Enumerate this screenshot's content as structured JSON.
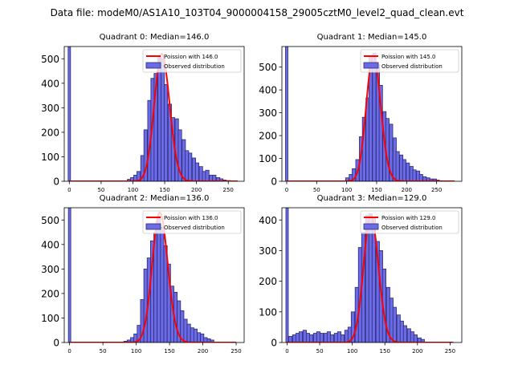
{
  "suptitle": "Data file: modeM0/AS1A10_103T04_9000004158_29005cztM0_level2_quad_clean.evt",
  "colors": {
    "bar_fill": "#6b6be8",
    "bar_edge": "#2a2a70",
    "curve": "#ff0000",
    "axis": "#000000"
  },
  "chart_data": [
    {
      "type": "bar",
      "title": "Quadrant 0: Median=146.0",
      "legend": [
        "Poission with 146.0",
        "Observed distribution"
      ],
      "legend_position": "upper-right",
      "xlim": [
        -8,
        275
      ],
      "ylim": [
        0,
        550
      ],
      "xticks": [
        0,
        50,
        100,
        150,
        200,
        250
      ],
      "yticks": [
        0,
        100,
        200,
        300,
        400,
        500
      ],
      "xlabel": "",
      "ylabel": "",
      "bin_width": 5.4,
      "zero_bin": {
        "x": 0,
        "value": 550
      },
      "bars": [
        {
          "x": 94,
          "v": 8
        },
        {
          "x": 99,
          "v": 15
        },
        {
          "x": 104,
          "v": 25
        },
        {
          "x": 109,
          "v": 40
        },
        {
          "x": 115,
          "v": 105
        },
        {
          "x": 120,
          "v": 210
        },
        {
          "x": 126,
          "v": 330
        },
        {
          "x": 131,
          "v": 420
        },
        {
          "x": 136,
          "v": 440
        },
        {
          "x": 142,
          "v": 510
        },
        {
          "x": 147,
          "v": 500
        },
        {
          "x": 152,
          "v": 395
        },
        {
          "x": 158,
          "v": 315
        },
        {
          "x": 163,
          "v": 260
        },
        {
          "x": 169,
          "v": 255
        },
        {
          "x": 174,
          "v": 210
        },
        {
          "x": 180,
          "v": 170
        },
        {
          "x": 185,
          "v": 125
        },
        {
          "x": 190,
          "v": 115
        },
        {
          "x": 196,
          "v": 95
        },
        {
          "x": 201,
          "v": 75
        },
        {
          "x": 207,
          "v": 60
        },
        {
          "x": 212,
          "v": 40
        },
        {
          "x": 217,
          "v": 45
        },
        {
          "x": 223,
          "v": 25
        },
        {
          "x": 228,
          "v": 25
        },
        {
          "x": 234,
          "v": 15
        },
        {
          "x": 239,
          "v": 10
        },
        {
          "x": 244,
          "v": 5
        },
        {
          "x": 250,
          "v": 3
        }
      ],
      "poisson": {
        "mean": 146.0,
        "peak": 520,
        "xmin": 0,
        "xmax": 265
      }
    },
    {
      "type": "bar",
      "title": "Quadrant 1: Median=145.0",
      "legend": [
        "Poission with 145.0",
        "Observed distribution"
      ],
      "legend_position": "upper-right",
      "xlim": [
        -8,
        292
      ],
      "ylim": [
        0,
        590
      ],
      "xticks": [
        0,
        50,
        100,
        150,
        200,
        250
      ],
      "yticks": [
        0,
        100,
        200,
        300,
        400,
        500
      ],
      "xlabel": "",
      "ylabel": "",
      "bin_width": 5.6,
      "zero_bin": {
        "x": 0,
        "value": 590
      },
      "bars": [
        {
          "x": 101,
          "v": 15
        },
        {
          "x": 107,
          "v": 30
        },
        {
          "x": 112,
          "v": 55
        },
        {
          "x": 118,
          "v": 95
        },
        {
          "x": 124,
          "v": 195
        },
        {
          "x": 129,
          "v": 280
        },
        {
          "x": 135,
          "v": 365
        },
        {
          "x": 140,
          "v": 550
        },
        {
          "x": 146,
          "v": 560
        },
        {
          "x": 152,
          "v": 510
        },
        {
          "x": 157,
          "v": 420
        },
        {
          "x": 163,
          "v": 305
        },
        {
          "x": 168,
          "v": 275
        },
        {
          "x": 174,
          "v": 250
        },
        {
          "x": 180,
          "v": 190
        },
        {
          "x": 185,
          "v": 130
        },
        {
          "x": 191,
          "v": 115
        },
        {
          "x": 196,
          "v": 95
        },
        {
          "x": 202,
          "v": 80
        },
        {
          "x": 208,
          "v": 65
        },
        {
          "x": 213,
          "v": 50
        },
        {
          "x": 219,
          "v": 45
        },
        {
          "x": 224,
          "v": 30
        },
        {
          "x": 230,
          "v": 20
        },
        {
          "x": 236,
          "v": 15
        },
        {
          "x": 241,
          "v": 10
        },
        {
          "x": 247,
          "v": 10
        },
        {
          "x": 252,
          "v": 5
        }
      ],
      "poisson": {
        "mean": 145.0,
        "peak": 550,
        "xmin": 0,
        "xmax": 280
      }
    },
    {
      "type": "bar",
      "title": "Quadrant 2: Median=136.0",
      "legend": [
        "Poission with 136.0",
        "Observed distribution"
      ],
      "legend_position": "upper-right",
      "xlim": [
        -8,
        262
      ],
      "ylim": [
        0,
        550
      ],
      "xticks": [
        0,
        50,
        100,
        150,
        200,
        250
      ],
      "yticks": [
        0,
        100,
        200,
        300,
        400,
        500
      ],
      "xlabel": "",
      "ylabel": "",
      "bin_width": 5.1,
      "zero_bin": {
        "x": 0,
        "value": 550
      },
      "bars": [
        {
          "x": 84,
          "v": 5
        },
        {
          "x": 89,
          "v": 10
        },
        {
          "x": 94,
          "v": 20
        },
        {
          "x": 99,
          "v": 35
        },
        {
          "x": 104,
          "v": 70
        },
        {
          "x": 109,
          "v": 175
        },
        {
          "x": 114,
          "v": 300
        },
        {
          "x": 119,
          "v": 345
        },
        {
          "x": 124,
          "v": 415
        },
        {
          "x": 129,
          "v": 450
        },
        {
          "x": 134,
          "v": 515
        },
        {
          "x": 139,
          "v": 470
        },
        {
          "x": 144,
          "v": 395
        },
        {
          "x": 149,
          "v": 320
        },
        {
          "x": 154,
          "v": 230
        },
        {
          "x": 159,
          "v": 205
        },
        {
          "x": 164,
          "v": 170
        },
        {
          "x": 169,
          "v": 130
        },
        {
          "x": 174,
          "v": 95
        },
        {
          "x": 179,
          "v": 75
        },
        {
          "x": 184,
          "v": 60
        },
        {
          "x": 189,
          "v": 55
        },
        {
          "x": 194,
          "v": 40
        },
        {
          "x": 199,
          "v": 35
        },
        {
          "x": 204,
          "v": 20
        },
        {
          "x": 209,
          "v": 15
        },
        {
          "x": 214,
          "v": 10
        }
      ],
      "poisson": {
        "mean": 136.0,
        "peak": 530,
        "xmin": 0,
        "xmax": 250
      }
    },
    {
      "type": "bar",
      "title": "Quadrant 3: Median=129.0",
      "legend": [
        "Poission with 129.0",
        "Observed distribution"
      ],
      "legend_position": "upper-right",
      "xlim": [
        -8,
        268
      ],
      "ylim": [
        0,
        440
      ],
      "xticks": [
        0,
        50,
        100,
        150,
        200,
        250
      ],
      "yticks": [
        0,
        100,
        200,
        300,
        400
      ],
      "xlabel": "",
      "ylabel": "",
      "bin_width": 5.3,
      "zero_bin": {
        "x": 0,
        "value": 440
      },
      "bars": [
        {
          "x": 5,
          "v": 20
        },
        {
          "x": 11,
          "v": 25
        },
        {
          "x": 16,
          "v": 30
        },
        {
          "x": 21,
          "v": 35
        },
        {
          "x": 27,
          "v": 40
        },
        {
          "x": 32,
          "v": 30
        },
        {
          "x": 37,
          "v": 25
        },
        {
          "x": 43,
          "v": 30
        },
        {
          "x": 48,
          "v": 35
        },
        {
          "x": 53,
          "v": 30
        },
        {
          "x": 59,
          "v": 30
        },
        {
          "x": 64,
          "v": 35
        },
        {
          "x": 69,
          "v": 25
        },
        {
          "x": 75,
          "v": 30
        },
        {
          "x": 80,
          "v": 35
        },
        {
          "x": 85,
          "v": 25
        },
        {
          "x": 91,
          "v": 40
        },
        {
          "x": 96,
          "v": 50
        },
        {
          "x": 101,
          "v": 100
        },
        {
          "x": 107,
          "v": 180
        },
        {
          "x": 112,
          "v": 310
        },
        {
          "x": 117,
          "v": 360
        },
        {
          "x": 123,
          "v": 415
        },
        {
          "x": 128,
          "v": 420
        },
        {
          "x": 133,
          "v": 405
        },
        {
          "x": 139,
          "v": 330
        },
        {
          "x": 144,
          "v": 300
        },
        {
          "x": 149,
          "v": 240
        },
        {
          "x": 155,
          "v": 180
        },
        {
          "x": 160,
          "v": 145
        },
        {
          "x": 165,
          "v": 115
        },
        {
          "x": 171,
          "v": 90
        },
        {
          "x": 176,
          "v": 70
        },
        {
          "x": 181,
          "v": 55
        },
        {
          "x": 187,
          "v": 45
        },
        {
          "x": 192,
          "v": 35
        },
        {
          "x": 197,
          "v": 25
        },
        {
          "x": 203,
          "v": 15
        },
        {
          "x": 208,
          "v": 10
        }
      ],
      "poisson": {
        "mean": 129.0,
        "peak": 415,
        "xmin": 0,
        "xmax": 255
      }
    }
  ]
}
